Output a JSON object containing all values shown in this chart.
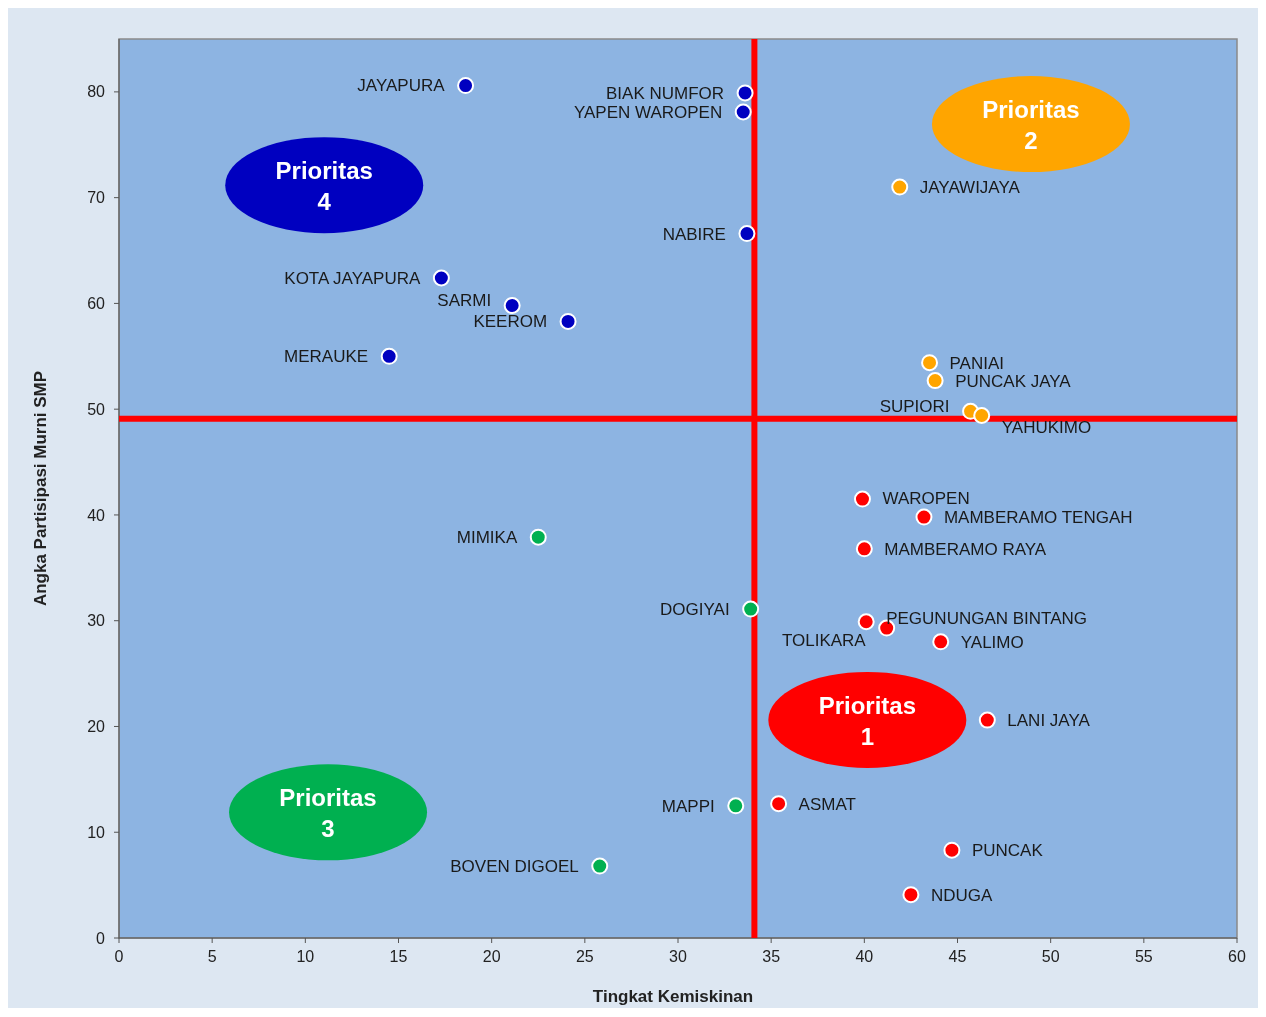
{
  "chart_data": {
    "type": "scatter",
    "xlabel": "Tingkat Kemiskinan",
    "ylabel": "Angka Partisipasi Murni SMP",
    "xlim": [
      0,
      60
    ],
    "xticks": [
      0,
      5,
      10,
      15,
      20,
      25,
      30,
      35,
      40,
      45,
      50,
      55,
      60
    ],
    "ylim": [
      0,
      85
    ],
    "yticks": [
      0,
      10,
      20,
      30,
      40,
      50,
      60,
      70,
      80
    ],
    "grid": false,
    "marker": "circle",
    "series": [
      {
        "color": "#ff0000",
        "x": [
          39.9,
          43.2,
          40.0,
          40.1,
          41.2,
          44.1,
          46.6,
          35.4,
          44.7,
          42.5
        ],
        "values": [
          41.5,
          39.8,
          36.8,
          29.9,
          29.3,
          28.0,
          20.6,
          12.7,
          8.3,
          4.1
        ]
      },
      {
        "color": "#ffa500",
        "x": [
          41.9,
          43.5,
          43.8,
          45.7,
          46.3
        ],
        "values": [
          71.0,
          54.4,
          52.7,
          49.8,
          49.4
        ]
      },
      {
        "color": "#00b050",
        "x": [
          22.5,
          33.9,
          33.1,
          25.8
        ],
        "values": [
          37.9,
          31.1,
          12.5,
          6.8
        ]
      },
      {
        "color": "#0000c0",
        "x": [
          18.6,
          33.6,
          33.5,
          33.7,
          17.3,
          21.1,
          24.1,
          14.5
        ],
        "values": [
          80.6,
          79.9,
          78.1,
          66.6,
          62.4,
          59.8,
          58.3,
          55.0
        ]
      }
    ],
    "ref_lines": [
      {
        "axis": "x",
        "value": 34.1,
        "color": "#ff0000"
      },
      {
        "axis": "y",
        "value": 49.1,
        "color": "#ff0000"
      }
    ],
    "annotations": [
      "Prioritas\n1",
      "Prioritas\n2",
      "Prioritas\n3",
      "Prioritas\n4",
      {
        "text": "WAROPEN",
        "x": 39.9,
        "y": 41.5
      },
      {
        "text": "MAMBERAMO TENGAH",
        "x": 43.2,
        "y": 39.8
      },
      {
        "text": "MAMBERAMO RAYA",
        "x": 40.0,
        "y": 36.8
      },
      {
        "text": "PEGUNUNGAN BINTANG",
        "x": 40.1,
        "y": 29.9
      },
      {
        "text": "TOLIKARA",
        "x": 41.2,
        "y": 29.3
      },
      {
        "text": "YALIMO",
        "x": 44.1,
        "y": 28.0
      },
      {
        "text": "LANI JAYA",
        "x": 46.6,
        "y": 20.6
      },
      {
        "text": "ASMAT",
        "x": 35.4,
        "y": 12.7
      },
      {
        "text": "PUNCAK",
        "x": 44.7,
        "y": 8.3
      },
      {
        "text": "NDUGA",
        "x": 42.5,
        "y": 4.1
      },
      {
        "text": "JAYAWIJAYA",
        "x": 41.9,
        "y": 71.0
      },
      {
        "text": "PANIAI",
        "x": 43.5,
        "y": 54.4
      },
      {
        "text": "PUNCAK JAYA",
        "x": 43.8,
        "y": 52.7
      },
      {
        "text": "SUPIORI",
        "x": 45.7,
        "y": 49.8
      },
      {
        "text": "YAHUKIMO",
        "x": 46.3,
        "y": 49.4
      },
      {
        "text": "MIMIKA",
        "x": 22.5,
        "y": 37.9
      },
      {
        "text": "DOGIYAI",
        "x": 33.9,
        "y": 31.1
      },
      {
        "text": "MAPPI",
        "x": 33.1,
        "y": 12.5
      },
      {
        "text": "BOVEN DIGOEL",
        "x": 25.8,
        "y": 6.8
      },
      {
        "text": "JAYAPURA",
        "x": 18.6,
        "y": 80.6
      },
      {
        "text": "BIAK NUMFOR",
        "x": 33.6,
        "y": 79.9
      },
      {
        "text": "YAPEN WAROPEN",
        "x": 33.5,
        "y": 78.1
      },
      {
        "text": "NABIRE",
        "x": 33.7,
        "y": 66.6
      },
      {
        "text": "KOTA JAYAPURA",
        "x": 17.3,
        "y": 62.4
      },
      {
        "text": "SARMI",
        "x": 21.1,
        "y": 59.8
      },
      {
        "text": "KEEROM",
        "x": 24.1,
        "y": 58.3
      },
      {
        "text": "MERAUKE",
        "x": 14.5,
        "y": 55.0
      }
    ]
  }
}
